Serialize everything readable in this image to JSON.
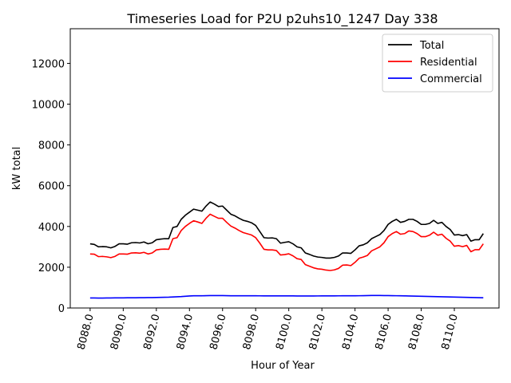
{
  "chart_data": {
    "type": "line",
    "title": "Timeseries Load for P2U p2uhs10_1247  Day 338",
    "xlabel": "Hour of Year",
    "ylabel": "kW total",
    "xlim": [
      8086.8,
      8112.7
    ],
    "ylim": [
      0,
      13700
    ],
    "x_ticks": [
      8088,
      8090,
      8092,
      8094,
      8096,
      8098,
      8100,
      8102,
      8104,
      8106,
      8108,
      8110
    ],
    "x_tick_labels": [
      "8088.0",
      "8090.0",
      "8092.0",
      "8094.0",
      "8096.0",
      "8098.0",
      "8100.0",
      "8102.0",
      "8104.0",
      "8106.0",
      "8108.0",
      "8110.0"
    ],
    "y_ticks": [
      0,
      2000,
      4000,
      6000,
      8000,
      10000,
      12000
    ],
    "y_tick_labels": [
      "0",
      "2000",
      "4000",
      "6000",
      "8000",
      "10000",
      "12000"
    ],
    "legend_position": "top-right",
    "x_start": 8088,
    "x_step": 0.25,
    "series": [
      {
        "name": "Total",
        "color": "#000000",
        "values": [
          3150,
          3120,
          3000,
          3010,
          3000,
          2950,
          3020,
          3150,
          3150,
          3130,
          3200,
          3210,
          3190,
          3240,
          3150,
          3200,
          3350,
          3380,
          3400,
          3400,
          3950,
          4000,
          4350,
          4550,
          4700,
          4850,
          4800,
          4750,
          5000,
          5200,
          5100,
          4980,
          5000,
          4800,
          4600,
          4520,
          4400,
          4300,
          4250,
          4180,
          4050,
          3750,
          3450,
          3430,
          3440,
          3400,
          3180,
          3220,
          3250,
          3150,
          3000,
          2950,
          2700,
          2630,
          2550,
          2500,
          2480,
          2450,
          2450,
          2480,
          2550,
          2700,
          2700,
          2680,
          2850,
          3050,
          3100,
          3200,
          3400,
          3500,
          3600,
          3800,
          4100,
          4250,
          4350,
          4200,
          4250,
          4350,
          4350,
          4250,
          4100,
          4100,
          4150,
          4300,
          4150,
          4200,
          4000,
          3850,
          3580,
          3600,
          3550,
          3600,
          3280,
          3350,
          3350,
          3650
        ]
      },
      {
        "name": "Residential",
        "color": "#ff0000",
        "values": [
          2650,
          2640,
          2520,
          2530,
          2510,
          2470,
          2530,
          2650,
          2650,
          2640,
          2700,
          2710,
          2690,
          2730,
          2650,
          2700,
          2850,
          2880,
          2890,
          2880,
          3400,
          3450,
          3800,
          4000,
          4150,
          4280,
          4220,
          4150,
          4400,
          4600,
          4500,
          4400,
          4400,
          4200,
          4020,
          3920,
          3800,
          3700,
          3640,
          3580,
          3450,
          3180,
          2880,
          2850,
          2850,
          2820,
          2600,
          2620,
          2660,
          2560,
          2420,
          2380,
          2130,
          2050,
          1970,
          1920,
          1900,
          1860,
          1840,
          1870,
          1940,
          2100,
          2110,
          2080,
          2240,
          2440,
          2500,
          2580,
          2800,
          2900,
          3000,
          3200,
          3500,
          3650,
          3750,
          3620,
          3650,
          3780,
          3750,
          3650,
          3500,
          3500,
          3570,
          3720,
          3570,
          3620,
          3420,
          3280,
          3030,
          3060,
          3010,
          3070,
          2760,
          2860,
          2860,
          3150
        ]
      },
      {
        "name": "Commercial",
        "color": "#0000ff",
        "values": [
          490,
          490,
          485,
          488,
          490,
          490,
          495,
          495,
          495,
          500,
          500,
          500,
          505,
          505,
          510,
          510,
          515,
          520,
          525,
          530,
          540,
          550,
          560,
          575,
          590,
          600,
          600,
          600,
          605,
          610,
          610,
          610,
          610,
          605,
          600,
          600,
          600,
          600,
          598,
          598,
          598,
          597,
          596,
          596,
          595,
          595,
          595,
          595,
          595,
          593,
          590,
          590,
          590,
          590,
          590,
          592,
          593,
          594,
          595,
          596,
          597,
          598,
          598,
          598,
          600,
          602,
          605,
          610,
          612,
          612,
          612,
          610,
          608,
          605,
          602,
          600,
          595,
          590,
          585,
          580,
          575,
          570,
          565,
          560,
          555,
          550,
          545,
          540,
          535,
          530,
          525,
          520,
          515,
          510,
          505,
          500
        ]
      }
    ]
  }
}
